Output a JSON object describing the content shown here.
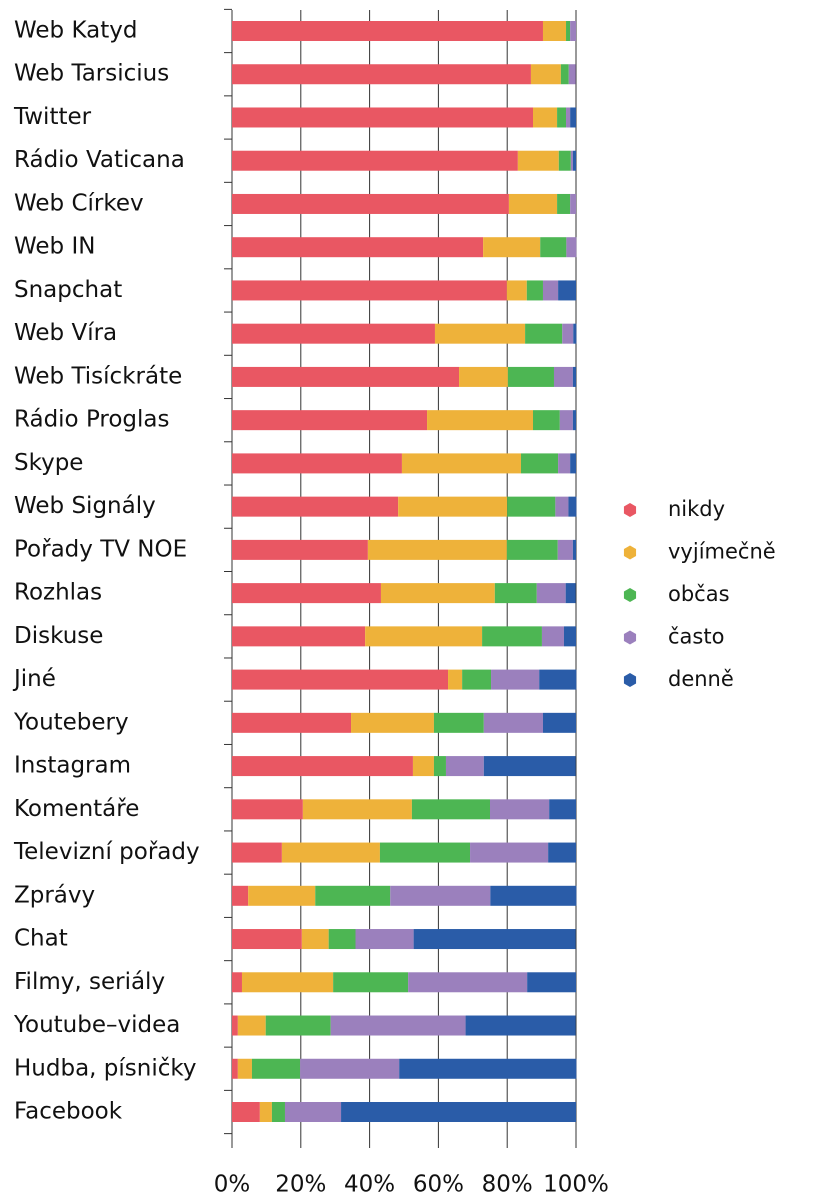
{
  "chart_data": {
    "type": "stacked_barh",
    "categories": [
      "Web Katyd",
      "Web Tarsicius",
      "Twitter",
      "Rádio Vaticana",
      "Web Církev",
      "Web IN",
      "Snapchat",
      "Web Víra",
      "Web Tisíckráte",
      "Rádio Proglas",
      "Skype",
      "Web Signály",
      "Pořady TV NOE",
      "Rozhlas",
      "Diskuse",
      "Jiné",
      "Youtebery",
      "Instagram",
      "Komentáře",
      "Televizní pořady",
      "Zprávy",
      "Chat",
      "Filmy, seriály",
      "Youtube–videa",
      "Hudba, písničky",
      "Facebook"
    ],
    "series": [
      {
        "name": "nikdy",
        "color": "#e95763",
        "values": [
          90.4,
          86.9,
          87.5,
          83.1,
          80.5,
          73.0,
          79.9,
          59.0,
          66.0,
          56.7,
          49.4,
          48.3,
          39.5,
          43.3,
          38.7,
          62.8,
          34.6,
          52.6,
          20.6,
          14.5,
          4.7,
          20.3,
          2.9,
          1.7,
          1.7,
          8.1
        ]
      },
      {
        "name": "vyjímečně",
        "color": "#eeb23a",
        "values": [
          6.7,
          8.7,
          7.0,
          11.9,
          14.0,
          16.6,
          5.8,
          26.2,
          14.2,
          30.8,
          34.6,
          31.7,
          40.4,
          33.1,
          34.0,
          4.1,
          24.1,
          6.1,
          31.7,
          28.5,
          19.5,
          7.8,
          26.5,
          8.1,
          4.1,
          3.5
        ]
      },
      {
        "name": "občas",
        "color": "#4db653",
        "values": [
          1.2,
          2.3,
          2.6,
          3.5,
          3.8,
          7.6,
          4.7,
          10.8,
          13.4,
          7.8,
          10.8,
          14.0,
          14.8,
          12.2,
          17.4,
          8.4,
          14.5,
          3.5,
          22.7,
          26.2,
          21.8,
          7.8,
          21.8,
          18.9,
          14.0,
          3.8
        ]
      },
      {
        "name": "často",
        "color": "#9b80bd",
        "values": [
          1.7,
          2.0,
          1.2,
          0.6,
          1.7,
          2.9,
          4.4,
          3.2,
          5.5,
          3.8,
          3.5,
          3.8,
          4.4,
          8.4,
          6.4,
          14.0,
          17.2,
          11.0,
          17.2,
          22.7,
          29.1,
          16.9,
          34.6,
          39.2,
          28.8,
          16.3
        ]
      },
      {
        "name": "denně",
        "color": "#2a5ca8",
        "values": [
          0,
          0,
          1.7,
          0.9,
          0,
          0,
          5.2,
          0.9,
          0.9,
          0.9,
          1.7,
          2.3,
          0.9,
          2.9,
          3.5,
          10.8,
          9.6,
          26.7,
          7.8,
          8.1,
          25.0,
          47.1,
          14.2,
          32.0,
          51.5,
          68.3
        ]
      }
    ],
    "xlim": [
      0,
      100
    ],
    "xticks": [
      {
        "value": 0,
        "label": "0%"
      },
      {
        "value": 20,
        "label": "20%"
      },
      {
        "value": 40,
        "label": "40%"
      },
      {
        "value": 60,
        "label": "60%"
      },
      {
        "value": 80,
        "label": "80%"
      },
      {
        "value": 100,
        "label": "100%"
      }
    ],
    "grid": true,
    "legend": "right"
  }
}
